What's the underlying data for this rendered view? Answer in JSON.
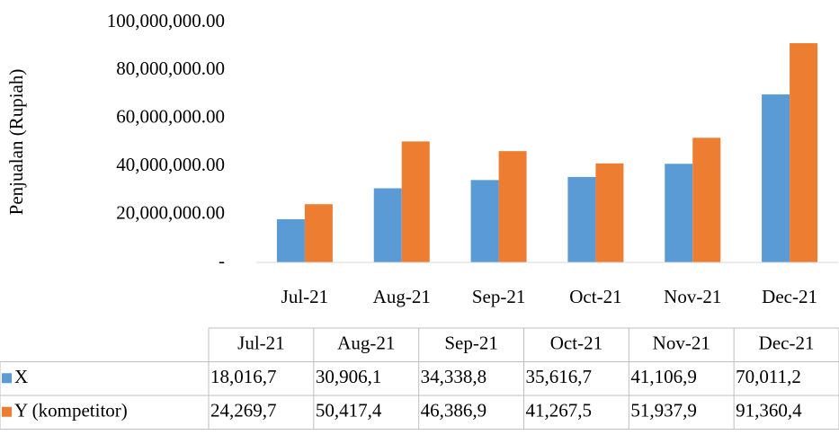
{
  "chart_data": {
    "type": "bar",
    "y_label": "Penjualan (Rupiah)",
    "categories": [
      "Jul-21",
      "Aug-21",
      "Sep-21",
      "Oct-21",
      "Nov-21",
      "Dec-21"
    ],
    "series": [
      {
        "name": "X",
        "color": "#5b9bd5",
        "values": [
          18016700,
          30906100,
          34338800,
          35616700,
          41106900,
          70011200
        ],
        "value_labels": [
          "18,016,7",
          "30,906,1",
          "34,338,8",
          "35,616,7",
          "41,106,9",
          "70,011,2"
        ]
      },
      {
        "name": "Y (kompetitor)",
        "color": "#ed7d31",
        "values": [
          24269700,
          50417400,
          46386900,
          41267500,
          51937900,
          91360400
        ],
        "value_labels": [
          "24,269,7",
          "50,417,4",
          "46,386,9",
          "41,267,5",
          "51,937,9",
          "91,360,4"
        ]
      }
    ],
    "ylim": [
      0,
      100000000
    ],
    "yticks": [
      {
        "value": 0,
        "label": "-"
      },
      {
        "value": 20000000,
        "label": "20,000,000.00"
      },
      {
        "value": 40000000,
        "label": "40,000,000.00"
      },
      {
        "value": 60000000,
        "label": "60,000,000.00"
      },
      {
        "value": 80000000,
        "label": "80,000,000.00"
      },
      {
        "value": 100000000,
        "label": "100,000,000.00"
      }
    ],
    "grid": false,
    "data_table": true
  }
}
